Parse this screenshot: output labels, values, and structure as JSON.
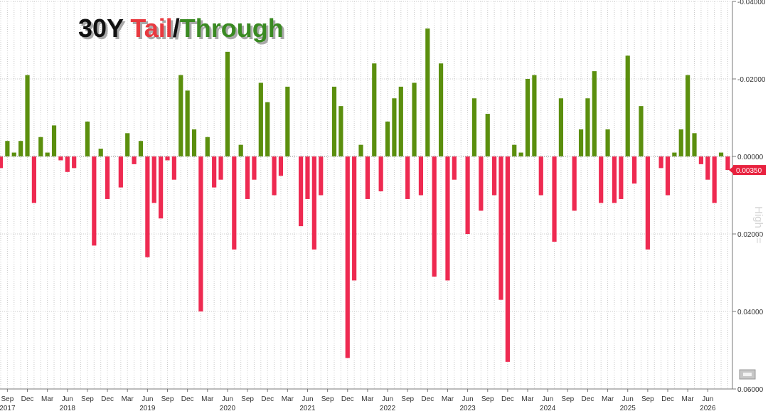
{
  "chart_data": {
    "type": "bar",
    "title_parts": [
      {
        "text": "30Y ",
        "color": "#111111"
      },
      {
        "text": "Tail",
        "color": "#e8393f"
      },
      {
        "text": "/",
        "color": "#111111"
      },
      {
        "text": "Through",
        "color": "#3a8a22"
      }
    ],
    "ylim": [
      -0.06,
      0.04
    ],
    "y_ticks": [
      {
        "value": 0.04,
        "label": "-0.04000"
      },
      {
        "value": 0.02,
        "label": "-0.02000"
      },
      {
        "value": 0.0,
        "label": "0.00000"
      },
      {
        "value": -0.02,
        "label": "0.02000"
      },
      {
        "value": -0.04,
        "label": "0.04000"
      },
      {
        "value": -0.06,
        "label": "0.06000"
      }
    ],
    "ylabel_side": "High <=",
    "last_value": {
      "value": -0.0035,
      "label": "0.00350"
    },
    "grid": true,
    "colors": {
      "through": "#5b8f0e",
      "tail": "#ee2a51",
      "badge": "#e8223f"
    },
    "start_month": "2017-08",
    "values": [
      -0.003,
      0.004,
      0.001,
      0.004,
      0.021,
      -0.012,
      0.005,
      0.001,
      0.008,
      -0.001,
      -0.004,
      -0.003,
      0.0,
      0.009,
      -0.023,
      0.002,
      -0.011,
      0.0,
      -0.008,
      0.006,
      -0.002,
      0.004,
      -0.026,
      -0.012,
      -0.016,
      -0.001,
      -0.006,
      0.021,
      0.017,
      0.007,
      -0.04,
      0.005,
      -0.008,
      -0.006,
      0.027,
      -0.024,
      0.003,
      -0.011,
      -0.006,
      0.019,
      0.014,
      -0.01,
      -0.005,
      0.018,
      0.0,
      -0.018,
      -0.011,
      -0.024,
      -0.01,
      0.0,
      0.018,
      0.013,
      -0.052,
      -0.032,
      0.003,
      -0.011,
      0.024,
      -0.009,
      0.009,
      0.015,
      0.018,
      -0.011,
      0.019,
      -0.01,
      0.033,
      -0.031,
      0.024,
      -0.032,
      -0.006,
      0.0,
      -0.02,
      0.015,
      -0.014,
      0.011,
      -0.01,
      -0.037,
      -0.053,
      0.003,
      0.001,
      0.02,
      0.021,
      -0.01,
      0.0,
      -0.022,
      0.015,
      0.0,
      -0.014,
      0.007,
      0.015,
      0.022,
      -0.012,
      0.007,
      -0.012,
      -0.011,
      0.026,
      -0.007,
      0.013,
      -0.024,
      0.0,
      -0.003,
      -0.01,
      0.001,
      0.007,
      0.021,
      0.006,
      -0.002,
      -0.006,
      -0.012,
      0.001,
      -0.0035
    ],
    "x_tick_labels": [
      {
        "month": "2017-09",
        "label": "Sep",
        "year": "2017"
      },
      {
        "month": "2017-12",
        "label": "Dec",
        "year": ""
      },
      {
        "month": "2018-03",
        "label": "Mar",
        "year": ""
      },
      {
        "month": "2018-06",
        "label": "Jun",
        "year": "2018"
      },
      {
        "month": "2018-09",
        "label": "Sep",
        "year": ""
      },
      {
        "month": "2018-12",
        "label": "Dec",
        "year": ""
      },
      {
        "month": "2019-03",
        "label": "Mar",
        "year": ""
      },
      {
        "month": "2019-06",
        "label": "Jun",
        "year": "2019"
      },
      {
        "month": "2019-09",
        "label": "Sep",
        "year": ""
      },
      {
        "month": "2019-12",
        "label": "Dec",
        "year": ""
      },
      {
        "month": "2020-03",
        "label": "Mar",
        "year": ""
      },
      {
        "month": "2020-06",
        "label": "Jun",
        "year": "2020"
      },
      {
        "month": "2020-09",
        "label": "Sep",
        "year": ""
      },
      {
        "month": "2020-12",
        "label": "Dec",
        "year": ""
      },
      {
        "month": "2021-03",
        "label": "Mar",
        "year": ""
      },
      {
        "month": "2021-06",
        "label": "Jun",
        "year": "2021"
      },
      {
        "month": "2021-09",
        "label": "Sep",
        "year": ""
      },
      {
        "month": "2021-12",
        "label": "Dec",
        "year": ""
      },
      {
        "month": "2022-03",
        "label": "Mar",
        "year": ""
      },
      {
        "month": "2022-06",
        "label": "Jun",
        "year": "2022"
      },
      {
        "month": "2022-09",
        "label": "Sep",
        "year": ""
      },
      {
        "month": "2022-12",
        "label": "Dec",
        "year": ""
      },
      {
        "month": "2023-03",
        "label": "Mar",
        "year": ""
      },
      {
        "month": "2023-06",
        "label": "Jun",
        "year": "2023"
      },
      {
        "month": "2023-09",
        "label": "Sep",
        "year": ""
      },
      {
        "month": "2023-12",
        "label": "Dec",
        "year": ""
      },
      {
        "month": "2024-03",
        "label": "Mar",
        "year": ""
      },
      {
        "month": "2024-06",
        "label": "Jun",
        "year": "2024"
      },
      {
        "month": "2024-09",
        "label": "Sep",
        "year": ""
      },
      {
        "month": "2024-12",
        "label": "Dec",
        "year": ""
      },
      {
        "month": "2025-03",
        "label": "Mar",
        "year": ""
      },
      {
        "month": "2025-06",
        "label": "Jun",
        "year": "2025"
      },
      {
        "month": "2025-09",
        "label": "Sep",
        "year": ""
      },
      {
        "month": "2025-12",
        "label": "Dec",
        "year": ""
      },
      {
        "month": "2026-03",
        "label": "Mar",
        "year": ""
      },
      {
        "month": "2026-06",
        "label": "Jun",
        "year": "2026"
      }
    ]
  }
}
